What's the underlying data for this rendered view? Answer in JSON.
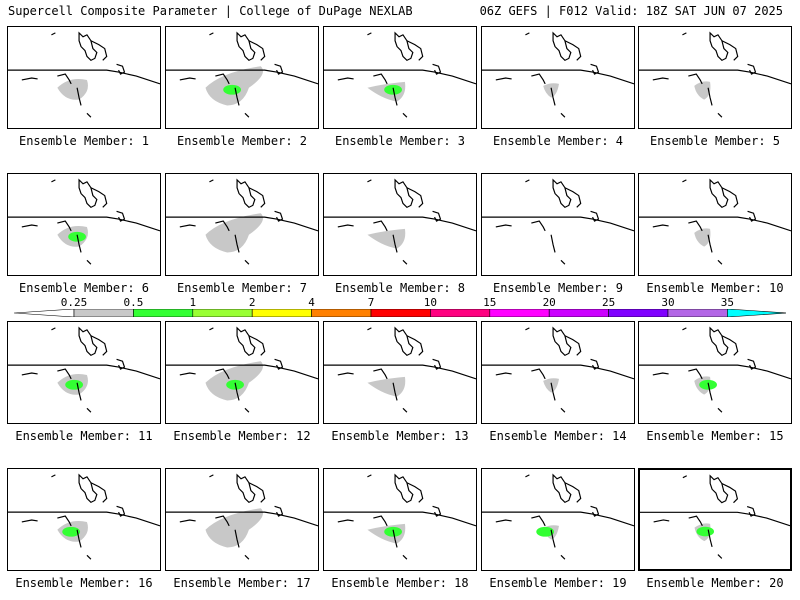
{
  "header": {
    "left": "Supercell Composite Parameter | College of DuPage NEXLAB",
    "right": "06Z GEFS | F012 Valid: 18Z SAT JUN 07 2025"
  },
  "legend": {
    "labels": [
      "0.25",
      "0.5",
      "1",
      "2",
      "4",
      "7",
      "10",
      "15",
      "20",
      "25",
      "30",
      "35"
    ],
    "colors": [
      "#ffffff",
      "#c8c8c8",
      "#33ff33",
      "#99ff33",
      "#ffff00",
      "#ff8000",
      "#ff0000",
      "#ff0080",
      "#ff00ff",
      "#cc00ff",
      "#8000ff",
      "#b366e6",
      "#00ffff"
    ]
  },
  "members": [
    {
      "label": "Ensemble Member: 1",
      "max": 0.5
    },
    {
      "label": "Ensemble Member: 2",
      "max": 1
    },
    {
      "label": "Ensemble Member: 3",
      "max": 1
    },
    {
      "label": "Ensemble Member: 4",
      "max": 0.5
    },
    {
      "label": "Ensemble Member: 5",
      "max": 0.5
    },
    {
      "label": "Ensemble Member: 6",
      "max": 1
    },
    {
      "label": "Ensemble Member: 7",
      "max": 0.5
    },
    {
      "label": "Ensemble Member: 8",
      "max": 0.5
    },
    {
      "label": "Ensemble Member: 9",
      "max": 0
    },
    {
      "label": "Ensemble Member: 10",
      "max": 0.5
    },
    {
      "label": "Ensemble Member: 11",
      "max": 1
    },
    {
      "label": "Ensemble Member: 12",
      "max": 1
    },
    {
      "label": "Ensemble Member: 13",
      "max": 0.5
    },
    {
      "label": "Ensemble Member: 14",
      "max": 0.5
    },
    {
      "label": "Ensemble Member: 15",
      "max": 1
    },
    {
      "label": "Ensemble Member: 16",
      "max": 1
    },
    {
      "label": "Ensemble Member: 17",
      "max": 0.5
    },
    {
      "label": "Ensemble Member: 18",
      "max": 1
    },
    {
      "label": "Ensemble Member: 19",
      "max": 1
    },
    {
      "label": "Ensemble Member: 20",
      "max": 1
    }
  ]
}
